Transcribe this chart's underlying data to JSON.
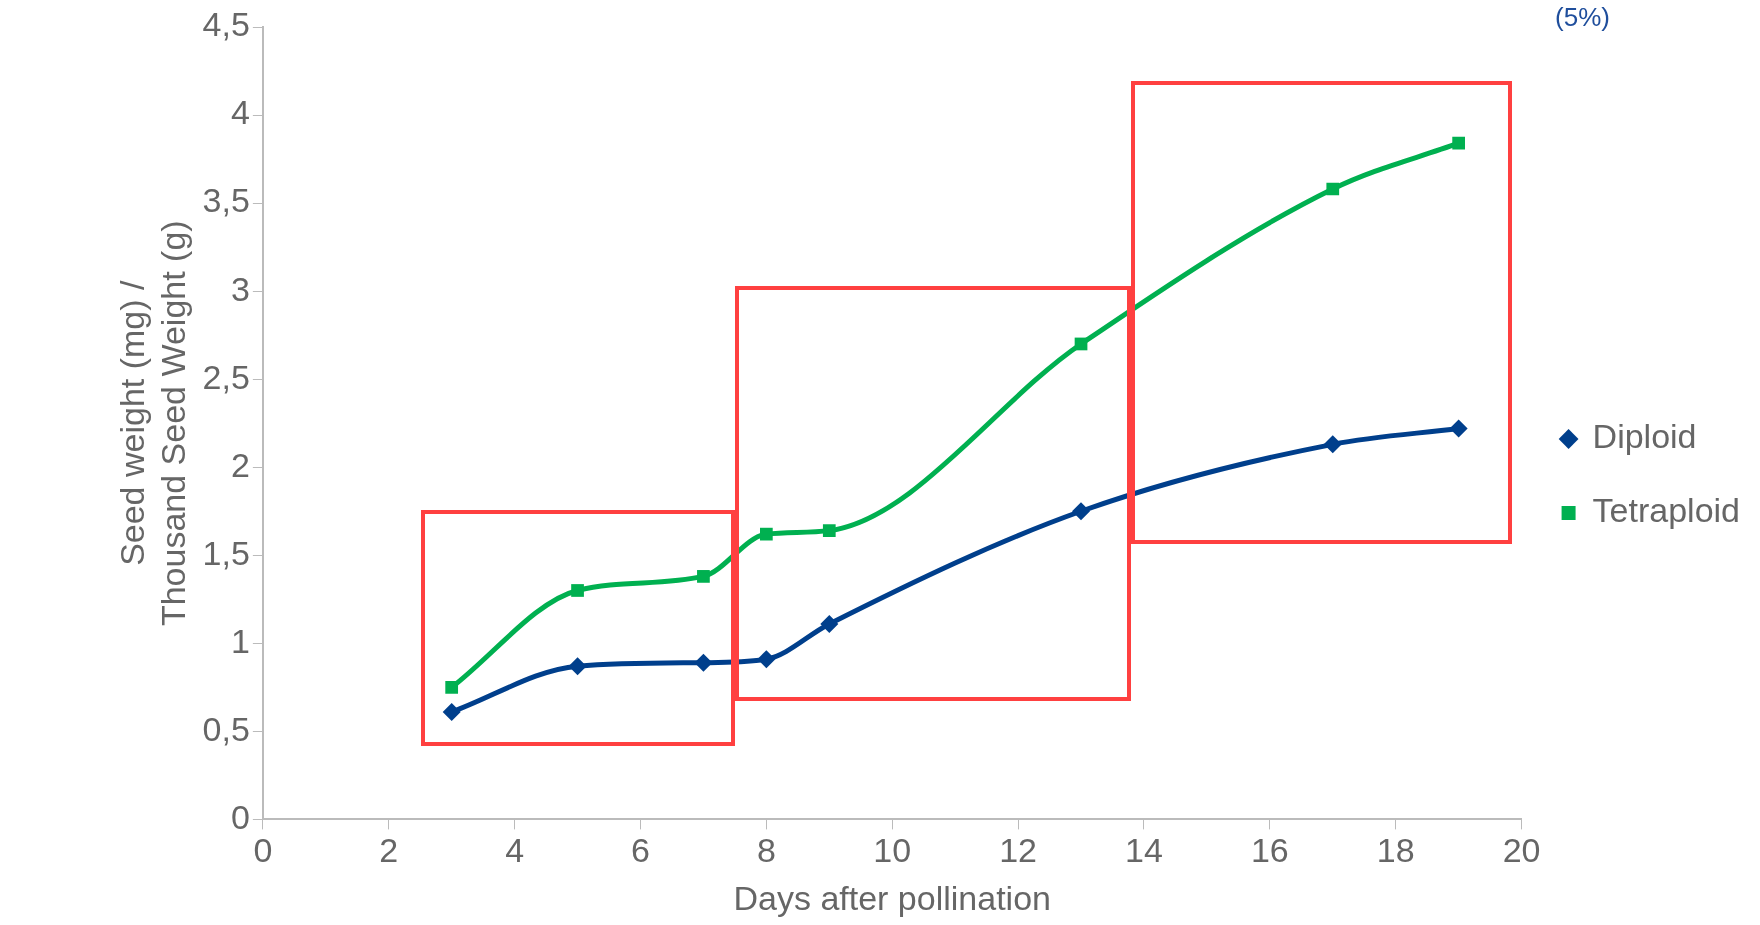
{
  "chart_data": {
    "type": "line",
    "xlabel": "Days after pollination",
    "ylabel": "Seed weight (mg) /\nThousand Seed Weight (g)",
    "annotations": [
      "(5%)"
    ],
    "series": [
      {
        "name": "Diploid",
        "color": "#003f8c",
        "marker": "diamond",
        "x": [
          3,
          5,
          7,
          8,
          9,
          13,
          17,
          19
        ],
        "values": [
          0.61,
          0.87,
          0.89,
          0.91,
          1.11,
          1.75,
          2.13,
          2.22
        ]
      },
      {
        "name": "Tetraploid",
        "color": "#00b050",
        "marker": "square",
        "x": [
          3,
          5,
          7,
          8,
          9,
          13,
          17,
          19
        ],
        "values": [
          0.75,
          1.3,
          1.38,
          1.62,
          1.64,
          2.7,
          3.58,
          3.84
        ]
      }
    ],
    "xlim": [
      0,
      20
    ],
    "xticks": [
      0,
      2,
      4,
      6,
      8,
      10,
      12,
      14,
      16,
      18,
      20
    ],
    "ylim": [
      0,
      4.5
    ],
    "yticks": [
      0,
      {
        "value": 0.5,
        "label": "0,5"
      },
      1,
      {
        "value": 1.5,
        "label": "1,5"
      },
      2,
      {
        "value": 2.5,
        "label": "2,5"
      },
      3,
      {
        "value": 3.5,
        "label": "3,5"
      },
      4,
      {
        "value": 4.5,
        "label": "4,5"
      }
    ],
    "grid": false,
    "legend": "right",
    "line_style": "solid"
  }
}
